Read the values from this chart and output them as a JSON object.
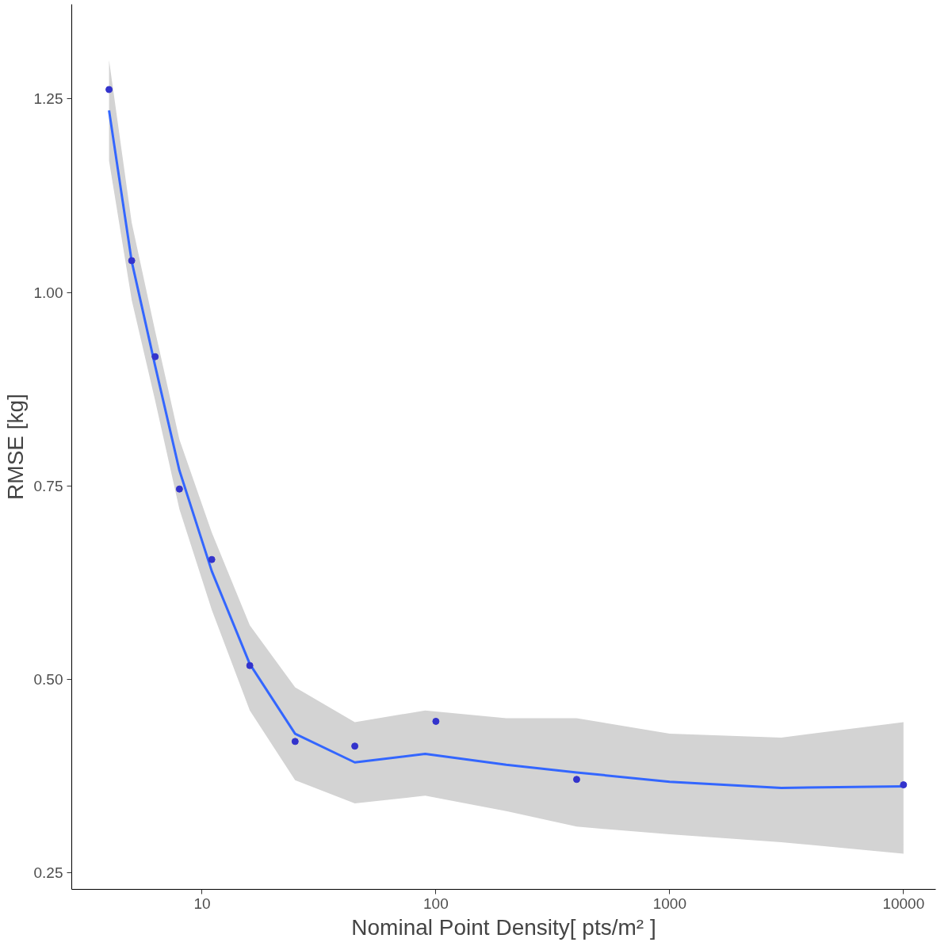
{
  "chart_data": {
    "type": "scatter",
    "xlabel": "Nominal Point Density[ pts/m² ]",
    "ylabel": "RMSE [kg]",
    "log": "x",
    "grid": false,
    "xlim": [
      2.77,
      13740
    ],
    "ylim": [
      0.229,
      1.372
    ],
    "xticks": [
      10,
      100,
      1000,
      10000
    ],
    "yticks": [
      {
        "value": 0.25,
        "label": "0.25"
      },
      {
        "value": 0.5,
        "label": "0.50"
      },
      {
        "value": 0.75,
        "label": "0.75"
      },
      {
        "value": 1.0,
        "label": "1.00"
      },
      {
        "value": 1.25,
        "label": "1.25"
      }
    ],
    "series": [
      {
        "type": "line",
        "color": "#3366ff",
        "line_style": "solid",
        "marker": "none",
        "x": [
          4,
          5,
          6.3,
          8,
          11,
          16,
          25,
          45,
          90,
          200,
          400,
          1000,
          3000,
          10000
        ],
        "values": [
          1.235,
          1.04,
          0.905,
          0.77,
          0.64,
          0.52,
          0.43,
          0.393,
          0.404,
          0.39,
          0.38,
          0.368,
          0.36,
          0.362
        ],
        "lower": [
          1.17,
          0.99,
          0.86,
          0.72,
          0.59,
          0.46,
          0.37,
          0.34,
          0.35,
          0.33,
          0.31,
          0.3,
          0.29,
          0.275
        ],
        "upper": [
          1.3,
          1.09,
          0.95,
          0.81,
          0.69,
          0.57,
          0.49,
          0.445,
          0.46,
          0.45,
          0.45,
          0.43,
          0.425,
          0.445
        ]
      },
      {
        "color": "#3333cc",
        "marker": "circle",
        "x": [
          4,
          5,
          6.3,
          8,
          11,
          16,
          25,
          45,
          100,
          400,
          10000
        ],
        "values": [
          1.262,
          1.041,
          0.917,
          0.746,
          0.655,
          0.518,
          0.42,
          0.414,
          0.446,
          0.371,
          0.364
        ]
      }
    ]
  }
}
